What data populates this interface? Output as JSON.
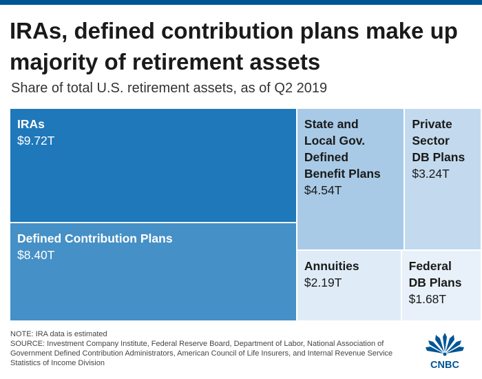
{
  "title": "IRAs, defined contribution plans make up majority of retirement assets",
  "subtitle": "Share of total U.S. retirement assets, as of Q2 2019",
  "chart_data": {
    "type": "treemap",
    "unit": "trillion USD",
    "items": [
      {
        "label": "IRAs",
        "value": 9.72,
        "value_label": "$9.72T",
        "color": "#1f78b9",
        "text_color": "#ffffff"
      },
      {
        "label": "Defined Contribution Plans",
        "value": 8.4,
        "value_label": "$8.40T",
        "color": "#4590c6",
        "text_color": "#ffffff"
      },
      {
        "label": "State and\nLocal Gov.\nDefined\nBenefit Plans",
        "value": 4.54,
        "value_label": "$4.54T",
        "color": "#a8cae6",
        "text_color": "#1a1a1a"
      },
      {
        "label": "Private\nSector\nDB Plans",
        "value": 3.24,
        "value_label": "$3.24T",
        "color": "#c3daee",
        "text_color": "#1a1a1a"
      },
      {
        "label": "Annuities",
        "value": 2.19,
        "value_label": "$2.19T",
        "color": "#dfecf7",
        "text_color": "#1a1a1a"
      },
      {
        "label": "Federal\nDB Plans",
        "value": 1.68,
        "value_label": "$1.68T",
        "color": "#e8f1f9",
        "text_color": "#1a1a1a"
      }
    ]
  },
  "footer": {
    "note": "NOTE: IRA data is estimated",
    "source": "SOURCE: Investment Company Institute, Federal Reserve Board, Department of Labor, National Association of Government Defined Contribution Administrators, American Council of Life Insurers, and Internal Revenue Service Statistics of Income Division"
  },
  "brand": {
    "logo_text": "CNBC",
    "logo_icon": "peacock-icon",
    "accent": "#005594"
  }
}
